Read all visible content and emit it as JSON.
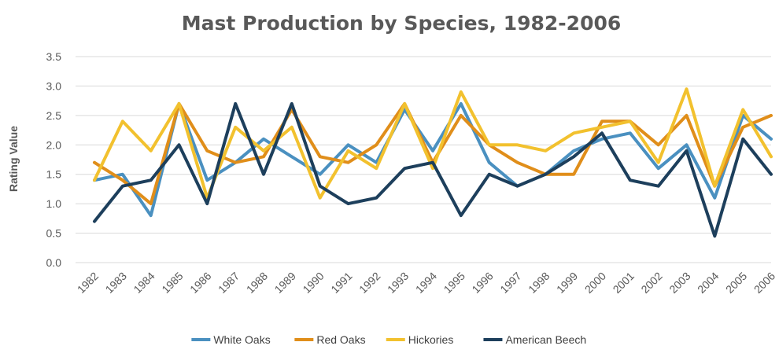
{
  "chart_data": {
    "type": "line",
    "title": "Mast Production by Species, 1982-2006",
    "xlabel": "",
    "ylabel": "Rating Value",
    "ylim": [
      0,
      3.5
    ],
    "yticks": [
      "0.0",
      "0.5",
      "1.0",
      "1.5",
      "2.0",
      "2.5",
      "3.0",
      "3.5"
    ],
    "grid": true,
    "legend_position": "bottom",
    "categories": [
      "1982",
      "1983",
      "1984",
      "1985",
      "1986",
      "1987",
      "1988",
      "1989",
      "1990",
      "1991",
      "1992",
      "1993",
      "1994",
      "1995",
      "1996",
      "1997",
      "1998",
      "1999",
      "2000",
      "2001",
      "2002",
      "2003",
      "2004",
      "2005",
      "2006"
    ],
    "series": [
      {
        "name": "White Oaks",
        "color": "#4a90c0",
        "values": [
          1.4,
          1.5,
          0.8,
          2.7,
          1.4,
          1.7,
          2.1,
          1.8,
          1.5,
          2.0,
          1.7,
          2.6,
          1.9,
          2.7,
          1.7,
          1.3,
          1.5,
          1.9,
          2.1,
          2.2,
          1.6,
          2.0,
          1.1,
          2.5,
          2.1
        ]
      },
      {
        "name": "Red Oaks",
        "color": "#e08e1a",
        "values": [
          1.7,
          1.4,
          1.0,
          2.7,
          1.9,
          1.7,
          1.8,
          2.6,
          1.8,
          1.7,
          2.0,
          2.7,
          1.7,
          2.5,
          2.0,
          1.7,
          1.5,
          1.5,
          2.4,
          2.4,
          2.0,
          2.5,
          1.3,
          2.3,
          2.5
        ]
      },
      {
        "name": "Hickories",
        "color": "#f2c12e",
        "values": [
          1.4,
          2.4,
          1.9,
          2.7,
          1.1,
          2.3,
          1.9,
          2.3,
          1.1,
          1.9,
          1.6,
          2.7,
          1.6,
          2.9,
          2.0,
          2.0,
          1.9,
          2.2,
          2.3,
          2.4,
          1.7,
          2.95,
          1.3,
          2.6,
          1.8
        ]
      },
      {
        "name": "American Beech",
        "color": "#1d3f5c",
        "values": [
          0.7,
          1.3,
          1.4,
          2.0,
          1.0,
          2.7,
          1.5,
          2.7,
          1.3,
          1.0,
          1.1,
          1.6,
          1.7,
          0.8,
          1.5,
          1.3,
          1.5,
          1.8,
          2.2,
          1.4,
          1.3,
          1.9,
          0.45,
          2.1,
          1.5
        ]
      }
    ]
  }
}
